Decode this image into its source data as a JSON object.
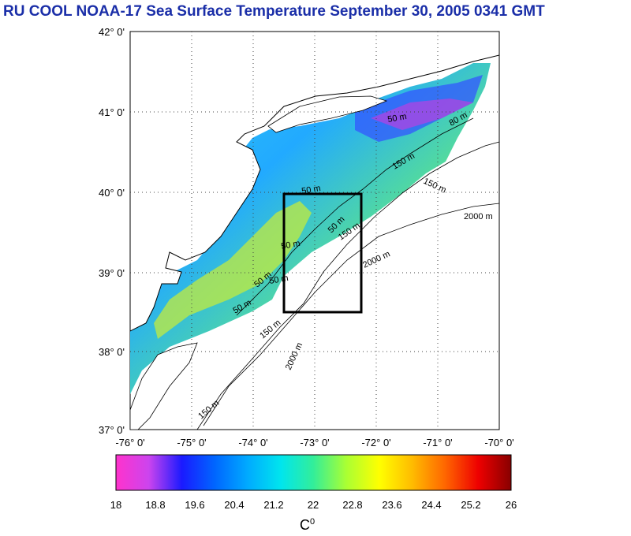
{
  "title": "RU COOL  NOAA-17 Sea Surface Temperature September 30, 2005 0341 GMT",
  "lat_labels": [
    "42° 0'",
    "41° 0'",
    "40° 0'",
    "39° 0'",
    "38° 0'",
    "37° 0'"
  ],
  "lon_labels": [
    "-76° 0'",
    "-75° 0'",
    "-74° 0'",
    "-73° 0'",
    "-72° 0'",
    "-71° 0'",
    "-70° 0'"
  ],
  "depth_labels": [
    "2000 m",
    "2000 m",
    "2000 m",
    "150 m",
    "150 m",
    "150 m",
    "50 m",
    "50 m",
    "50 m",
    "50 m",
    "50 m",
    "50 m",
    "80 m",
    "50 m",
    "150 m",
    "150 m"
  ],
  "colorbar": {
    "ticks": [
      "18",
      "18.8",
      "19.6",
      "20.4",
      "21.2",
      "22",
      "22.8",
      "23.6",
      "24.4",
      "25.2",
      "26"
    ],
    "unit": "C",
    "unit_sup": "0",
    "colors": [
      "#ff33cc",
      "#cc44ee",
      "#1a1aff",
      "#0066ff",
      "#00aaff",
      "#00e5ee",
      "#33ee99",
      "#aaff33",
      "#ffff00",
      "#ffbb00",
      "#ff6600",
      "#ee0000",
      "#880000"
    ]
  }
}
